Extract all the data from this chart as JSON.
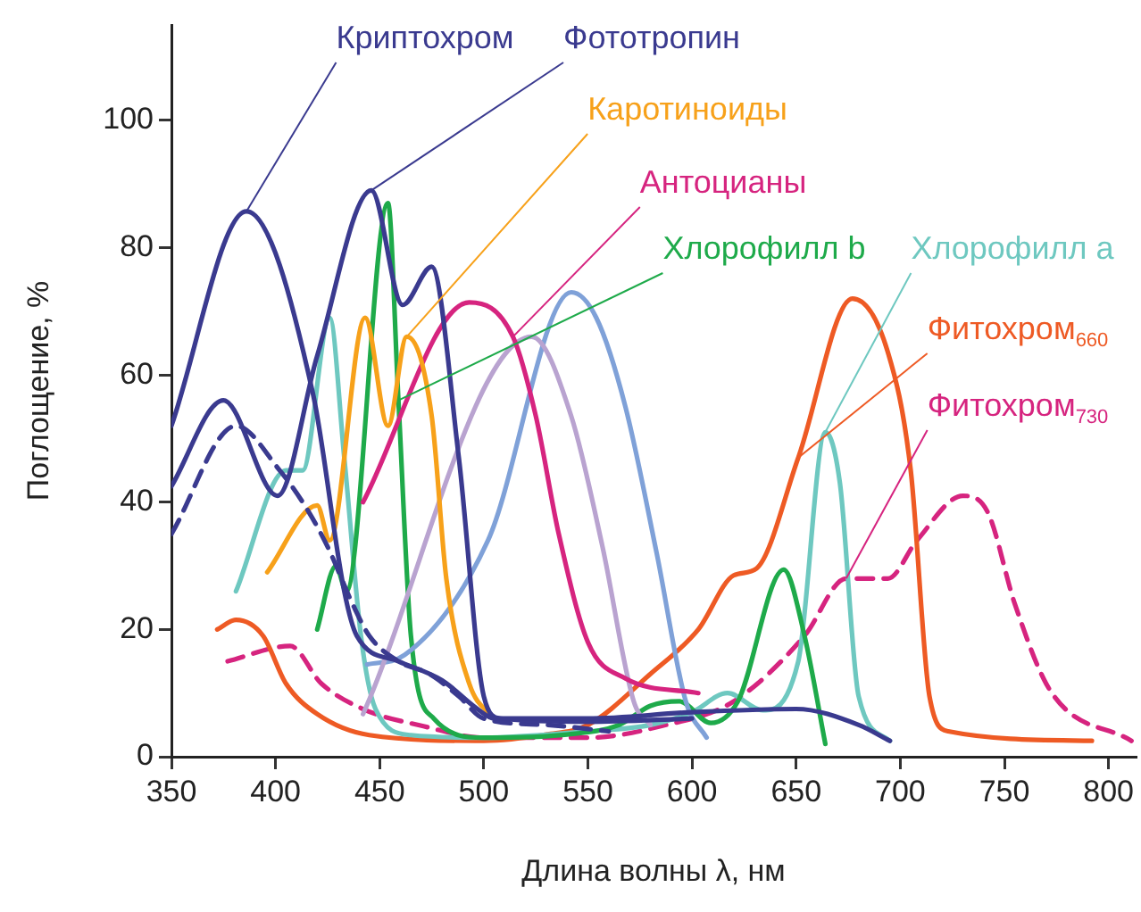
{
  "chart_data": {
    "type": "line",
    "xlabel": "Длина волны λ, нм",
    "ylabel": "Поглощение, %",
    "xlim": [
      350,
      813
    ],
    "xticks": [
      350,
      400,
      450,
      500,
      550,
      600,
      650,
      700,
      750,
      800
    ],
    "ylim": [
      0,
      115
    ],
    "yticks": [
      0,
      20,
      40,
      60,
      80,
      100
    ],
    "grid": false,
    "legend": false,
    "marker": "none",
    "series": [
      {
        "name": "Криптохром",
        "color": "#3a3a8f",
        "line_style": "solid",
        "x": [
          350,
          386,
          418,
          433,
          439,
          459,
          480,
          497,
          505,
          550,
          600,
          650,
          680,
          695
        ],
        "values": [
          52,
          85.7,
          57,
          26,
          19,
          15,
          12,
          7.5,
          6,
          6,
          7,
          7.5,
          5,
          2.5
        ]
      },
      {
        "name": "Фототропин",
        "color": "#3a3a8f",
        "line_style": "solid",
        "x": [
          350,
          375,
          401,
          420,
          446,
          461,
          475,
          488,
          500,
          508,
          550,
          600
        ],
        "values": [
          42.5,
          56,
          41,
          63,
          89,
          71,
          77,
          47,
          9.5,
          6,
          5.5,
          6
        ]
      },
      {
        "color": "#3a3a8f",
        "line_style": "dashed",
        "x": [
          350,
          381,
          402,
          414,
          425,
          437,
          445,
          459,
          474,
          488,
          500,
          530,
          560
        ],
        "values": [
          35,
          52,
          45,
          39.5,
          33,
          24,
          19,
          15,
          13,
          9.5,
          6,
          5,
          4
        ]
      },
      {
        "name": "Каротиноиды",
        "color": "#f7a11a",
        "line_style": "solid",
        "x": [
          396,
          420,
          426,
          443,
          454,
          463,
          475,
          482,
          493,
          505
        ],
        "values": [
          29,
          39.5,
          34,
          69,
          52,
          66,
          53.5,
          28,
          11.5,
          6
        ]
      },
      {
        "name": "Антоцианы",
        "color": "#d6247f",
        "line_style": "solid",
        "x": [
          442,
          493,
          514,
          525,
          536,
          550,
          568,
          603
        ],
        "values": [
          40,
          71.4,
          66,
          53.5,
          35,
          18,
          12.3,
          10
        ]
      },
      {
        "color": "#b9a3d0",
        "line_style": "solid",
        "x": [
          442,
          523,
          542,
          557,
          572,
          580
        ],
        "values": [
          6.7,
          66,
          53.5,
          33,
          8.7,
          5
        ]
      },
      {
        "color": "#7fa1d8",
        "line_style": "solid",
        "x": [
          444,
          462,
          502,
          542,
          554,
          568,
          583,
          597,
          607
        ],
        "values": [
          14.5,
          16,
          34,
          73,
          69,
          55,
          32,
          8.7,
          3
        ]
      },
      {
        "name": "Хлорофилл b",
        "color": "#1eaa4a",
        "line_style": "solid",
        "x": [
          420,
          429,
          434,
          454,
          459,
          465,
          476,
          500,
          540,
          565,
          580,
          594,
          609,
          622,
          644,
          654,
          664
        ],
        "values": [
          20,
          30,
          26,
          87,
          56,
          19,
          6,
          3,
          3.5,
          5,
          8,
          8.7,
          5.3,
          8.7,
          29.4,
          19,
          2
        ]
      },
      {
        "name": "Хлорофилл a",
        "color": "#6ec8c0",
        "line_style": "solid",
        "x": [
          381,
          405,
          413,
          426,
          433,
          441,
          448,
          465,
          500,
          550,
          580,
          600,
          617,
          634,
          651,
          664,
          671,
          680,
          695
        ],
        "values": [
          26,
          45,
          45,
          69,
          47,
          19,
          7.5,
          3.4,
          3,
          4,
          5,
          7,
          10,
          7.3,
          15,
          51,
          43,
          9.5,
          2.5
        ]
      },
      {
        "name": "Фитохром$_{660}$",
        "color": "#ee5a24",
        "line_style": "solid",
        "x": [
          372,
          381,
          394,
          405,
          420,
          445,
          500,
          530,
          550,
          580,
          603,
          620,
          631,
          651,
          677,
          694,
          705,
          714,
          723,
          792
        ],
        "values": [
          20,
          21.5,
          19,
          11.5,
          6.7,
          3.4,
          2.5,
          3.5,
          5,
          13,
          20,
          28.5,
          29.6,
          47,
          72,
          63.6,
          45,
          9.5,
          4,
          2.5
        ]
      },
      {
        "name": "Фитохром$_{730}$",
        "color": "#d6247f",
        "line_style": "dashed",
        "x": [
          377,
          407,
          422,
          442,
          471,
          500,
          550,
          585,
          620,
          654,
          674,
          694,
          708,
          730,
          742,
          755,
          772,
          811
        ],
        "values": [
          15,
          17.4,
          11.5,
          7.5,
          4.8,
          3,
          3,
          4.8,
          8.7,
          19,
          28,
          28,
          34,
          41,
          38.4,
          24,
          10.4,
          2.5
        ]
      }
    ]
  }
}
